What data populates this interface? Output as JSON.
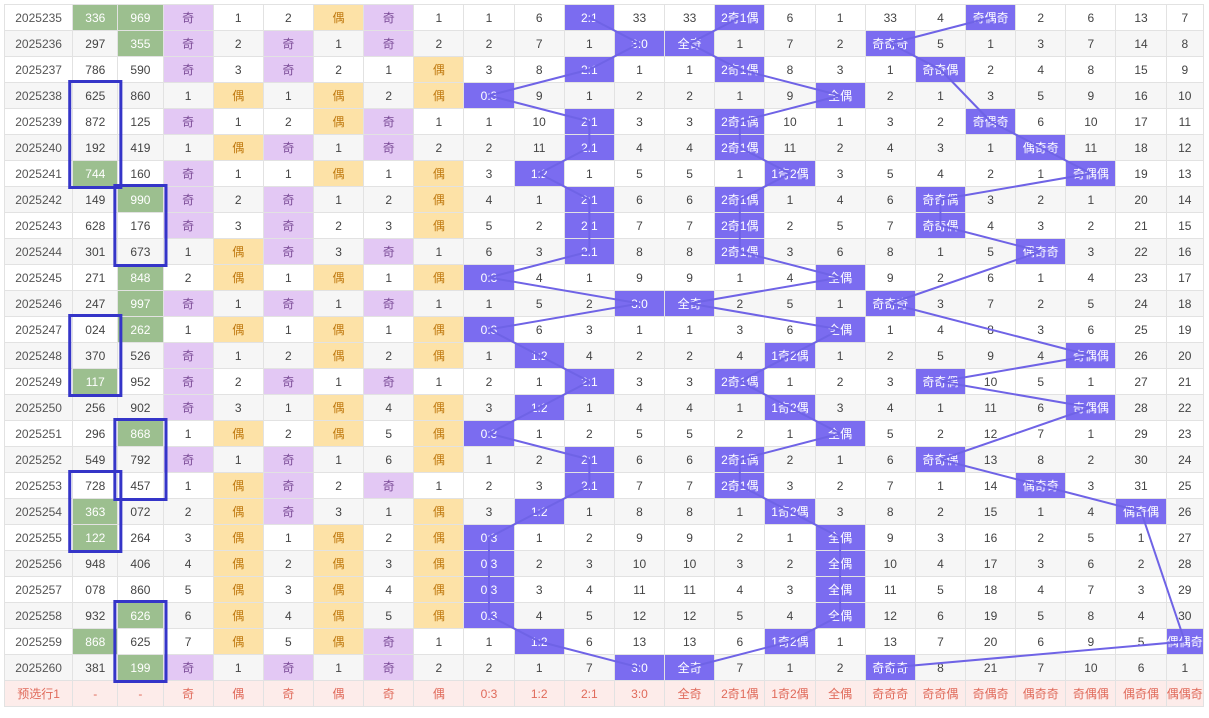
{
  "colors": {
    "hit": "#7b6cf0",
    "green": "#9cbf8f",
    "ji_bg": "#e3c8f4",
    "ou_bg": "#fde2a7",
    "line": "#6f63e6",
    "box": "#3535c8",
    "foot_text": "#e06a5a"
  },
  "rows": [
    [
      "2025235",
      "336",
      "969",
      "奇",
      "1",
      "2",
      "偶",
      "奇",
      "1",
      "1",
      "6",
      "2:1",
      "33",
      "33",
      "2奇1偶",
      "6",
      "1",
      "33",
      "4",
      "奇偶奇",
      "2",
      "6",
      "13",
      "7"
    ],
    [
      "2025236",
      "297",
      "355",
      "奇",
      "2",
      "奇",
      "1",
      "奇",
      "2",
      "2",
      "7",
      "1",
      "3:0",
      "全奇",
      "1",
      "7",
      "2",
      "奇奇奇",
      "5",
      "1",
      "3",
      "7",
      "14",
      "8"
    ],
    [
      "2025237",
      "786",
      "590",
      "奇",
      "3",
      "奇",
      "2",
      "1",
      "偶",
      "3",
      "8",
      "2:1",
      "1",
      "1",
      "2奇1偶",
      "8",
      "3",
      "1",
      "奇奇偶",
      "2",
      "4",
      "8",
      "15",
      "9"
    ],
    [
      "2025238",
      "625",
      "860",
      "1",
      "偶",
      "1",
      "偶",
      "2",
      "偶",
      "0:3",
      "9",
      "1",
      "2",
      "2",
      "1",
      "9",
      "全偶",
      "2",
      "1",
      "3",
      "5",
      "9",
      "16",
      "10"
    ],
    [
      "2025239",
      "872",
      "125",
      "奇",
      "1",
      "2",
      "偶",
      "奇",
      "1",
      "1",
      "10",
      "2:1",
      "3",
      "3",
      "2奇1偶",
      "10",
      "1",
      "3",
      "2",
      "奇偶奇",
      "6",
      "10",
      "17",
      "11"
    ],
    [
      "2025240",
      "192",
      "419",
      "1",
      "偶",
      "奇",
      "1",
      "奇",
      "2",
      "2",
      "11",
      "2:1",
      "4",
      "4",
      "2奇1偶",
      "11",
      "2",
      "4",
      "3",
      "1",
      "偶奇奇",
      "11",
      "18",
      "12"
    ],
    [
      "2025241",
      "744",
      "160",
      "奇",
      "1",
      "1",
      "偶",
      "1",
      "偶",
      "3",
      "1:2",
      "1",
      "5",
      "5",
      "1",
      "1奇2偶",
      "3",
      "5",
      "4",
      "2",
      "1",
      "奇偶偶",
      "19",
      "13"
    ],
    [
      "2025242",
      "149",
      "990",
      "奇",
      "2",
      "奇",
      "1",
      "2",
      "偶",
      "4",
      "1",
      "2:1",
      "6",
      "6",
      "2奇1偶",
      "1",
      "4",
      "6",
      "奇奇偶",
      "3",
      "2",
      "1",
      "20",
      "14"
    ],
    [
      "2025243",
      "628",
      "176",
      "奇",
      "3",
      "奇",
      "2",
      "3",
      "偶",
      "5",
      "2",
      "2:1",
      "7",
      "7",
      "2奇1偶",
      "2",
      "5",
      "7",
      "奇奇偶",
      "4",
      "3",
      "2",
      "21",
      "15"
    ],
    [
      "2025244",
      "301",
      "673",
      "1",
      "偶",
      "奇",
      "3",
      "奇",
      "1",
      "6",
      "3",
      "2:1",
      "8",
      "8",
      "2奇1偶",
      "3",
      "6",
      "8",
      "1",
      "5",
      "偶奇奇",
      "3",
      "22",
      "16"
    ],
    [
      "2025245",
      "271",
      "848",
      "2",
      "偶",
      "1",
      "偶",
      "1",
      "偶",
      "0:3",
      "4",
      "1",
      "9",
      "9",
      "1",
      "4",
      "全偶",
      "9",
      "2",
      "6",
      "1",
      "4",
      "23",
      "17"
    ],
    [
      "2025246",
      "247",
      "997",
      "奇",
      "1",
      "奇",
      "1",
      "奇",
      "1",
      "1",
      "5",
      "2",
      "3:0",
      "全奇",
      "2",
      "5",
      "1",
      "奇奇奇",
      "3",
      "7",
      "2",
      "5",
      "24",
      "18"
    ],
    [
      "2025247",
      "024",
      "262",
      "1",
      "偶",
      "1",
      "偶",
      "1",
      "偶",
      "0:3",
      "6",
      "3",
      "1",
      "1",
      "3",
      "6",
      "全偶",
      "1",
      "4",
      "8",
      "3",
      "6",
      "25",
      "19"
    ],
    [
      "2025248",
      "370",
      "526",
      "奇",
      "1",
      "2",
      "偶",
      "2",
      "偶",
      "1",
      "1:2",
      "4",
      "2",
      "2",
      "4",
      "1奇2偶",
      "1",
      "2",
      "5",
      "9",
      "4",
      "奇偶偶",
      "26",
      "20"
    ],
    [
      "2025249",
      "117",
      "952",
      "奇",
      "2",
      "奇",
      "1",
      "奇",
      "1",
      "2",
      "1",
      "2:1",
      "3",
      "3",
      "2奇1偶",
      "1",
      "2",
      "3",
      "奇奇偶",
      "10",
      "5",
      "1",
      "27",
      "21"
    ],
    [
      "2025250",
      "256",
      "902",
      "奇",
      "3",
      "1",
      "偶",
      "4",
      "偶",
      "3",
      "1:2",
      "1",
      "4",
      "4",
      "1",
      "1奇2偶",
      "3",
      "4",
      "1",
      "11",
      "6",
      "奇偶偶",
      "28",
      "22"
    ],
    [
      "2025251",
      "296",
      "868",
      "1",
      "偶",
      "2",
      "偶",
      "5",
      "偶",
      "0:3",
      "1",
      "2",
      "5",
      "5",
      "2",
      "1",
      "全偶",
      "5",
      "2",
      "12",
      "7",
      "1",
      "29",
      "23"
    ],
    [
      "2025252",
      "549",
      "792",
      "奇",
      "1",
      "奇",
      "1",
      "6",
      "偶",
      "1",
      "2",
      "2:1",
      "6",
      "6",
      "2奇1偶",
      "2",
      "1",
      "6",
      "奇奇偶",
      "13",
      "8",
      "2",
      "30",
      "24"
    ],
    [
      "2025253",
      "728",
      "457",
      "1",
      "偶",
      "奇",
      "2",
      "奇",
      "1",
      "2",
      "3",
      "2:1",
      "7",
      "7",
      "2奇1偶",
      "3",
      "2",
      "7",
      "1",
      "14",
      "偶奇奇",
      "3",
      "31",
      "25"
    ],
    [
      "2025254",
      "363",
      "072",
      "2",
      "偶",
      "奇",
      "3",
      "1",
      "偶",
      "3",
      "1:2",
      "1",
      "8",
      "8",
      "1",
      "1奇2偶",
      "3",
      "8",
      "2",
      "15",
      "1",
      "4",
      "偶奇偶",
      "26"
    ],
    [
      "2025255",
      "122",
      "264",
      "3",
      "偶",
      "1",
      "偶",
      "2",
      "偶",
      "0:3",
      "1",
      "2",
      "9",
      "9",
      "2",
      "1",
      "全偶",
      "9",
      "3",
      "16",
      "2",
      "5",
      "1",
      "27"
    ],
    [
      "2025256",
      "948",
      "406",
      "4",
      "偶",
      "2",
      "偶",
      "3",
      "偶",
      "0:3",
      "2",
      "3",
      "10",
      "10",
      "3",
      "2",
      "全偶",
      "10",
      "4",
      "17",
      "3",
      "6",
      "2",
      "28"
    ],
    [
      "2025257",
      "078",
      "860",
      "5",
      "偶",
      "3",
      "偶",
      "4",
      "偶",
      "0:3",
      "3",
      "4",
      "11",
      "11",
      "4",
      "3",
      "全偶",
      "11",
      "5",
      "18",
      "4",
      "7",
      "3",
      "29"
    ],
    [
      "2025258",
      "932",
      "626",
      "6",
      "偶",
      "4",
      "偶",
      "5",
      "偶",
      "0:3",
      "4",
      "5",
      "12",
      "12",
      "5",
      "4",
      "全偶",
      "12",
      "6",
      "19",
      "5",
      "8",
      "4",
      "30"
    ],
    [
      "2025259",
      "868",
      "625",
      "7",
      "偶",
      "5",
      "偶",
      "奇",
      "1",
      "1",
      "1:2",
      "6",
      "13",
      "13",
      "6",
      "1奇2偶",
      "1",
      "13",
      "7",
      "20",
      "6",
      "9",
      "5",
      "偶偶奇"
    ],
    [
      "2025260",
      "381",
      "199",
      "奇",
      "1",
      "奇",
      "1",
      "奇",
      "2",
      "2",
      "1",
      "7",
      "3:0",
      "全奇",
      "7",
      "1",
      "2",
      "奇奇奇",
      "8",
      "21",
      "7",
      "10",
      "6",
      "1"
    ]
  ],
  "footer": [
    "预选行1",
    "-",
    "-",
    "奇",
    "偶",
    "奇",
    "偶",
    "奇",
    "偶",
    "0:3",
    "1:2",
    "2:1",
    "3:0",
    "全奇",
    "2奇1偶",
    "1奇2偶",
    "全偶",
    "奇奇奇",
    "奇奇偶",
    "奇偶奇",
    "偶奇奇",
    "奇偶偶",
    "偶奇偶",
    "偶偶奇"
  ],
  "green_cells": {
    "col1": [
      "2025235",
      "2025241",
      "2025249",
      "2025254",
      "2025255",
      "2025259"
    ],
    "col2": [
      "2025235",
      "2025236",
      "2025242",
      "2025245",
      "2025246",
      "2025247",
      "2025251",
      "2025258",
      "2025260"
    ]
  },
  "highlight_values": [
    "3:0",
    "2:1",
    "1:2",
    "0:3",
    "全奇",
    "全偶",
    "2奇1偶",
    "1奇2偶",
    "奇奇奇",
    "奇奇偶",
    "奇偶奇",
    "偶奇奇",
    "奇偶偶",
    "偶奇偶",
    "偶偶奇"
  ]
}
